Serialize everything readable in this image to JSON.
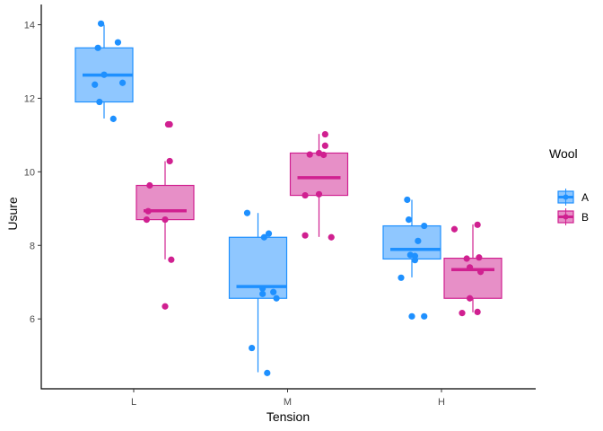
{
  "chart_data": {
    "type": "boxplot",
    "title": "",
    "xlabel": "Tension",
    "ylabel": "Usure",
    "categories": [
      "L",
      "M",
      "H"
    ],
    "yticks": [
      6,
      8,
      10,
      12,
      14
    ],
    "ylim": [
      4.1,
      14.55
    ],
    "grid": false,
    "legend": {
      "title": "Wool",
      "position": "right",
      "entries": [
        "A",
        "B"
      ]
    },
    "colors": {
      "A": {
        "line": "#1E90FF",
        "fill": "#8FC7FF"
      },
      "B": {
        "line": "#D02090",
        "fill": "#E78FC7"
      }
    },
    "series": [
      {
        "name": "A",
        "boxes": [
          {
            "category": "L",
            "whisker_low": 11.45,
            "q1": 11.9,
            "median": 12.63,
            "q3": 13.37,
            "whisker_high": 14.0
          },
          {
            "category": "M",
            "whisker_low": 4.55,
            "q1": 6.56,
            "median": 6.88,
            "q3": 8.22,
            "whisker_high": 8.88
          },
          {
            "category": "H",
            "whisker_low": 7.13,
            "q1": 7.63,
            "median": 7.89,
            "q3": 8.53,
            "whisker_high": 9.24
          }
        ],
        "points": [
          {
            "category": "L",
            "jitter": -0.02,
            "y": 14.03
          },
          {
            "category": "L",
            "jitter": 0.09,
            "y": 13.52
          },
          {
            "category": "L",
            "jitter": -0.04,
            "y": 13.37
          },
          {
            "category": "L",
            "jitter": 0.0,
            "y": 12.64
          },
          {
            "category": "L",
            "jitter": -0.06,
            "y": 12.37
          },
          {
            "category": "L",
            "jitter": 0.12,
            "y": 12.42
          },
          {
            "category": "L",
            "jitter": -0.03,
            "y": 11.9
          },
          {
            "category": "L",
            "jitter": 0.06,
            "y": 11.44
          },
          {
            "category": "M",
            "jitter": -0.07,
            "y": 8.88
          },
          {
            "category": "M",
            "jitter": 0.04,
            "y": 8.22
          },
          {
            "category": "M",
            "jitter": 0.07,
            "y": 8.32
          },
          {
            "category": "M",
            "jitter": 0.03,
            "y": 6.83
          },
          {
            "category": "M",
            "jitter": 0.03,
            "y": 6.68
          },
          {
            "category": "M",
            "jitter": 0.1,
            "y": 6.73
          },
          {
            "category": "M",
            "jitter": 0.12,
            "y": 6.56
          },
          {
            "category": "M",
            "jitter": -0.04,
            "y": 5.21
          },
          {
            "category": "M",
            "jitter": 0.06,
            "y": 4.53
          },
          {
            "category": "H",
            "jitter": -0.03,
            "y": 9.24
          },
          {
            "category": "H",
            "jitter": -0.02,
            "y": 8.7
          },
          {
            "category": "H",
            "jitter": 0.08,
            "y": 8.53
          },
          {
            "category": "H",
            "jitter": 0.04,
            "y": 8.12
          },
          {
            "category": "H",
            "jitter": -0.01,
            "y": 7.74
          },
          {
            "category": "H",
            "jitter": 0.02,
            "y": 7.71
          },
          {
            "category": "H",
            "jitter": 0.02,
            "y": 7.6
          },
          {
            "category": "H",
            "jitter": -0.07,
            "y": 7.12
          },
          {
            "category": "H",
            "jitter": 0.0,
            "y": 6.07
          },
          {
            "category": "H",
            "jitter": 0.08,
            "y": 6.07
          }
        ]
      },
      {
        "name": "B",
        "boxes": [
          {
            "category": "L",
            "whisker_low": 7.62,
            "q1": 8.7,
            "median": 8.94,
            "q3": 9.63,
            "whisker_high": 10.29
          },
          {
            "category": "M",
            "whisker_low": 8.23,
            "q1": 9.36,
            "median": 9.84,
            "q3": 10.51,
            "whisker_high": 11.03
          },
          {
            "category": "H",
            "whisker_low": 6.18,
            "q1": 6.56,
            "median": 7.34,
            "q3": 7.65,
            "whisker_high": 8.57
          }
        ],
        "points": [
          {
            "category": "L",
            "jitter": 0.02,
            "y": 11.29
          },
          {
            "category": "L",
            "jitter": 0.03,
            "y": 11.29
          },
          {
            "category": "L",
            "jitter": 0.03,
            "y": 10.29
          },
          {
            "category": "L",
            "jitter": -0.1,
            "y": 9.63
          },
          {
            "category": "L",
            "jitter": -0.11,
            "y": 8.93
          },
          {
            "category": "L",
            "jitter": -0.12,
            "y": 8.7
          },
          {
            "category": "L",
            "jitter": 0.0,
            "y": 8.7
          },
          {
            "category": "L",
            "jitter": 0.04,
            "y": 7.61
          },
          {
            "category": "L",
            "jitter": 0.0,
            "y": 6.34
          },
          {
            "category": "M",
            "jitter": 0.04,
            "y": 11.02
          },
          {
            "category": "M",
            "jitter": 0.04,
            "y": 10.71
          },
          {
            "category": "M",
            "jitter": -0.06,
            "y": 10.47
          },
          {
            "category": "M",
            "jitter": 0.0,
            "y": 10.51
          },
          {
            "category": "M",
            "jitter": 0.03,
            "y": 10.46
          },
          {
            "category": "M",
            "jitter": -0.09,
            "y": 9.36
          },
          {
            "category": "M",
            "jitter": 0.0,
            "y": 9.39
          },
          {
            "category": "M",
            "jitter": -0.09,
            "y": 8.27
          },
          {
            "category": "M",
            "jitter": 0.08,
            "y": 8.22
          },
          {
            "category": "H",
            "jitter": -0.12,
            "y": 8.44
          },
          {
            "category": "H",
            "jitter": 0.03,
            "y": 8.56
          },
          {
            "category": "H",
            "jitter": -0.04,
            "y": 7.64
          },
          {
            "category": "H",
            "jitter": 0.04,
            "y": 7.67
          },
          {
            "category": "H",
            "jitter": -0.02,
            "y": 7.4
          },
          {
            "category": "H",
            "jitter": 0.05,
            "y": 7.28
          },
          {
            "category": "H",
            "jitter": -0.02,
            "y": 6.56
          },
          {
            "category": "H",
            "jitter": -0.07,
            "y": 6.16
          },
          {
            "category": "H",
            "jitter": 0.03,
            "y": 6.19
          }
        ]
      }
    ]
  }
}
